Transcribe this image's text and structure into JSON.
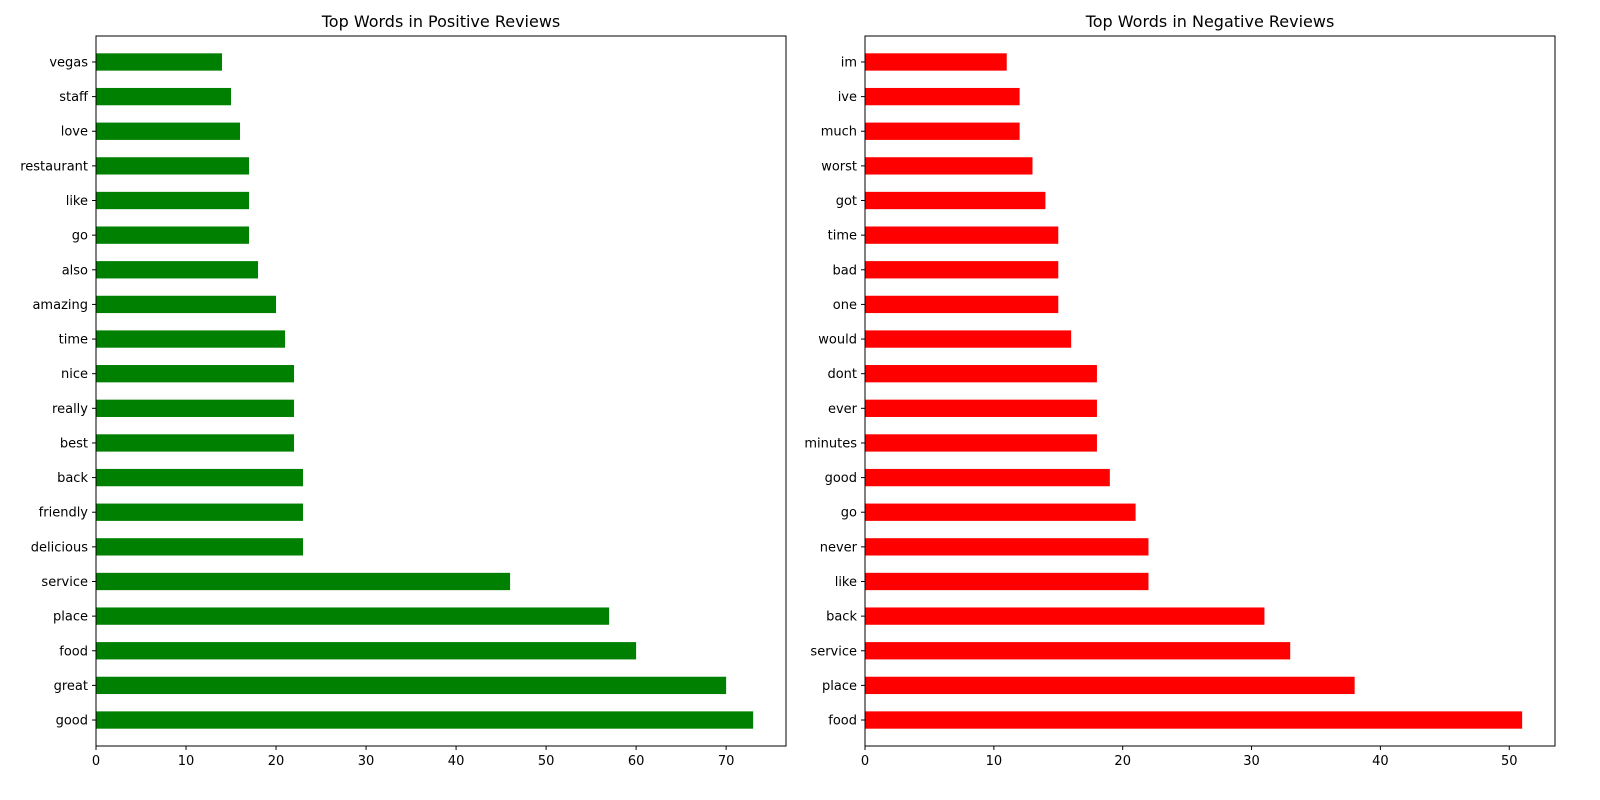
{
  "chart_data": [
    {
      "type": "bar",
      "orientation": "horizontal",
      "title": "Top Words in Positive Reviews",
      "xlabel": "",
      "ylabel": "",
      "xlim": [
        0,
        76.65
      ],
      "xticks": [
        0,
        10,
        20,
        30,
        40,
        50,
        60,
        70
      ],
      "grid": false,
      "color": "#008000",
      "categories": [
        "good",
        "great",
        "food",
        "place",
        "service",
        "delicious",
        "friendly",
        "back",
        "best",
        "really",
        "nice",
        "time",
        "amazing",
        "also",
        "go",
        "like",
        "restaurant",
        "love",
        "staff",
        "vegas"
      ],
      "values": [
        73,
        70,
        60,
        57,
        46,
        23,
        23,
        23,
        22,
        22,
        22,
        21,
        20,
        18,
        17,
        17,
        17,
        16,
        15,
        14
      ]
    },
    {
      "type": "bar",
      "orientation": "horizontal",
      "title": "Top Words in Negative Reviews",
      "xlabel": "",
      "ylabel": "",
      "xlim": [
        0,
        53.55
      ],
      "xticks": [
        0,
        10,
        20,
        30,
        40,
        50
      ],
      "grid": false,
      "color": "#ff0000",
      "categories": [
        "food",
        "place",
        "service",
        "back",
        "like",
        "never",
        "go",
        "good",
        "minutes",
        "ever",
        "dont",
        "would",
        "one",
        "bad",
        "time",
        "got",
        "worst",
        "much",
        "ive",
        "im"
      ],
      "values": [
        51,
        38,
        33,
        31,
        22,
        22,
        21,
        19,
        18,
        18,
        18,
        16,
        15,
        15,
        15,
        14,
        13,
        12,
        12,
        11
      ]
    }
  ]
}
